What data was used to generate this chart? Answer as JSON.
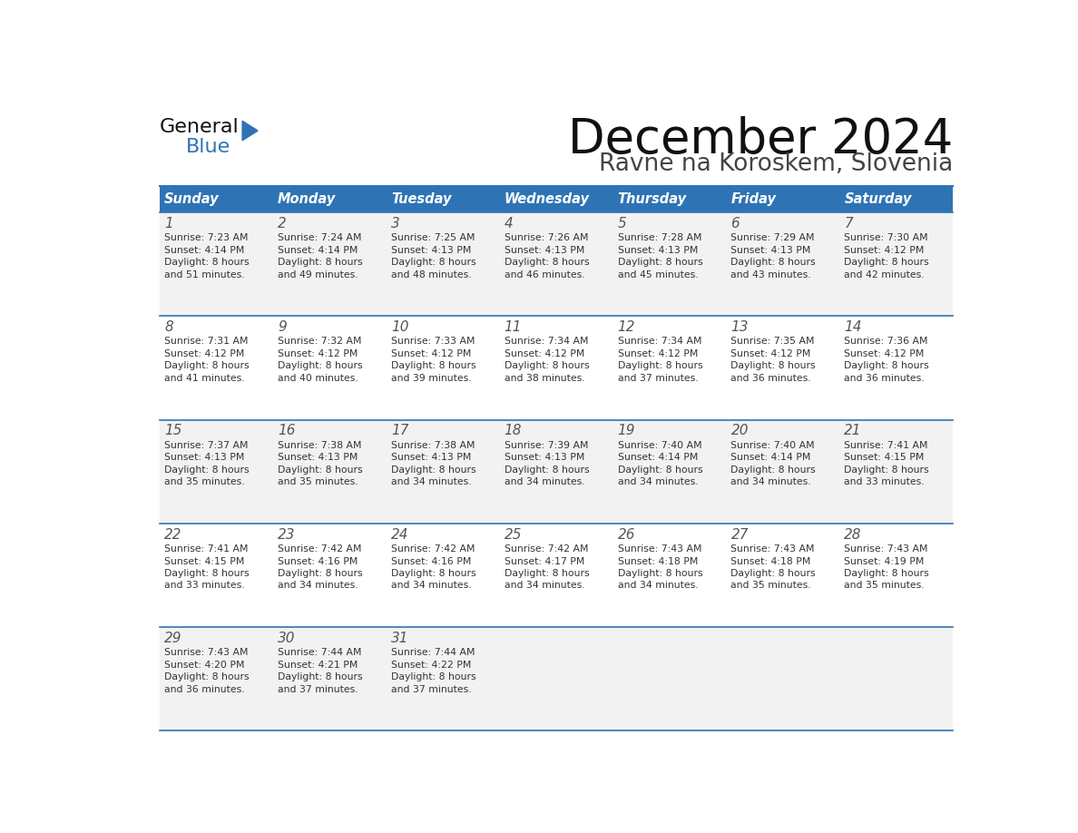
{
  "title": "December 2024",
  "subtitle": "Ravne na Koroskem, Slovenia",
  "days_of_week": [
    "Sunday",
    "Monday",
    "Tuesday",
    "Wednesday",
    "Thursday",
    "Friday",
    "Saturday"
  ],
  "header_bg": "#2E74B5",
  "header_text": "#FFFFFF",
  "cell_bg_light": "#F2F2F2",
  "cell_bg_white": "#FFFFFF",
  "day_num_color": "#555555",
  "text_color": "#333333",
  "line_color": "#2E74B5",
  "title_color": "#111111",
  "subtitle_color": "#444444",
  "logo_general_color": "#111111",
  "logo_blue_color": "#2E74B5",
  "weeks": [
    [
      {
        "day": 1,
        "sunrise": "7:23 AM",
        "sunset": "4:14 PM",
        "daylight": "8 hours and 51 minutes."
      },
      {
        "day": 2,
        "sunrise": "7:24 AM",
        "sunset": "4:14 PM",
        "daylight": "8 hours and 49 minutes."
      },
      {
        "day": 3,
        "sunrise": "7:25 AM",
        "sunset": "4:13 PM",
        "daylight": "8 hours and 48 minutes."
      },
      {
        "day": 4,
        "sunrise": "7:26 AM",
        "sunset": "4:13 PM",
        "daylight": "8 hours and 46 minutes."
      },
      {
        "day": 5,
        "sunrise": "7:28 AM",
        "sunset": "4:13 PM",
        "daylight": "8 hours and 45 minutes."
      },
      {
        "day": 6,
        "sunrise": "7:29 AM",
        "sunset": "4:13 PM",
        "daylight": "8 hours and 43 minutes."
      },
      {
        "day": 7,
        "sunrise": "7:30 AM",
        "sunset": "4:12 PM",
        "daylight": "8 hours and 42 minutes."
      }
    ],
    [
      {
        "day": 8,
        "sunrise": "7:31 AM",
        "sunset": "4:12 PM",
        "daylight": "8 hours and 41 minutes."
      },
      {
        "day": 9,
        "sunrise": "7:32 AM",
        "sunset": "4:12 PM",
        "daylight": "8 hours and 40 minutes."
      },
      {
        "day": 10,
        "sunrise": "7:33 AM",
        "sunset": "4:12 PM",
        "daylight": "8 hours and 39 minutes."
      },
      {
        "day": 11,
        "sunrise": "7:34 AM",
        "sunset": "4:12 PM",
        "daylight": "8 hours and 38 minutes."
      },
      {
        "day": 12,
        "sunrise": "7:34 AM",
        "sunset": "4:12 PM",
        "daylight": "8 hours and 37 minutes."
      },
      {
        "day": 13,
        "sunrise": "7:35 AM",
        "sunset": "4:12 PM",
        "daylight": "8 hours and 36 minutes."
      },
      {
        "day": 14,
        "sunrise": "7:36 AM",
        "sunset": "4:12 PM",
        "daylight": "8 hours and 36 minutes."
      }
    ],
    [
      {
        "day": 15,
        "sunrise": "7:37 AM",
        "sunset": "4:13 PM",
        "daylight": "8 hours and 35 minutes."
      },
      {
        "day": 16,
        "sunrise": "7:38 AM",
        "sunset": "4:13 PM",
        "daylight": "8 hours and 35 minutes."
      },
      {
        "day": 17,
        "sunrise": "7:38 AM",
        "sunset": "4:13 PM",
        "daylight": "8 hours and 34 minutes."
      },
      {
        "day": 18,
        "sunrise": "7:39 AM",
        "sunset": "4:13 PM",
        "daylight": "8 hours and 34 minutes."
      },
      {
        "day": 19,
        "sunrise": "7:40 AM",
        "sunset": "4:14 PM",
        "daylight": "8 hours and 34 minutes."
      },
      {
        "day": 20,
        "sunrise": "7:40 AM",
        "sunset": "4:14 PM",
        "daylight": "8 hours and 34 minutes."
      },
      {
        "day": 21,
        "sunrise": "7:41 AM",
        "sunset": "4:15 PM",
        "daylight": "8 hours and 33 minutes."
      }
    ],
    [
      {
        "day": 22,
        "sunrise": "7:41 AM",
        "sunset": "4:15 PM",
        "daylight": "8 hours and 33 minutes."
      },
      {
        "day": 23,
        "sunrise": "7:42 AM",
        "sunset": "4:16 PM",
        "daylight": "8 hours and 34 minutes."
      },
      {
        "day": 24,
        "sunrise": "7:42 AM",
        "sunset": "4:16 PM",
        "daylight": "8 hours and 34 minutes."
      },
      {
        "day": 25,
        "sunrise": "7:42 AM",
        "sunset": "4:17 PM",
        "daylight": "8 hours and 34 minutes."
      },
      {
        "day": 26,
        "sunrise": "7:43 AM",
        "sunset": "4:18 PM",
        "daylight": "8 hours and 34 minutes."
      },
      {
        "day": 27,
        "sunrise": "7:43 AM",
        "sunset": "4:18 PM",
        "daylight": "8 hours and 35 minutes."
      },
      {
        "day": 28,
        "sunrise": "7:43 AM",
        "sunset": "4:19 PM",
        "daylight": "8 hours and 35 minutes."
      }
    ],
    [
      {
        "day": 29,
        "sunrise": "7:43 AM",
        "sunset": "4:20 PM",
        "daylight": "8 hours and 36 minutes."
      },
      {
        "day": 30,
        "sunrise": "7:44 AM",
        "sunset": "4:21 PM",
        "daylight": "8 hours and 37 minutes."
      },
      {
        "day": 31,
        "sunrise": "7:44 AM",
        "sunset": "4:22 PM",
        "daylight": "8 hours and 37 minutes."
      },
      null,
      null,
      null,
      null
    ]
  ]
}
